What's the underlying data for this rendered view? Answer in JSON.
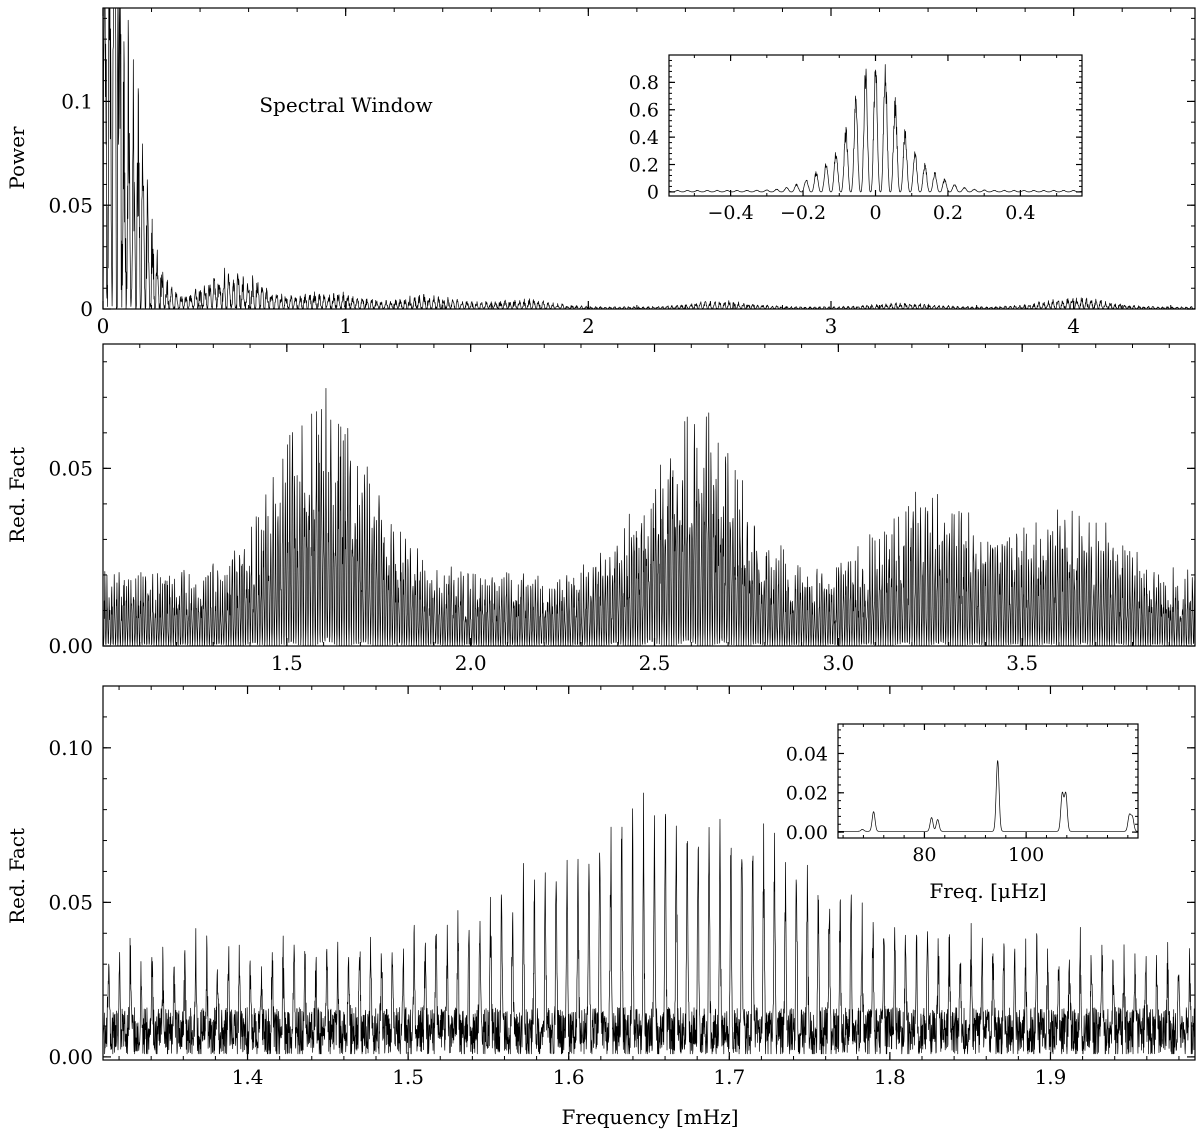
{
  "chart_data": [
    {
      "id": "window",
      "type": "line",
      "annotation": "Spectral Window",
      "xlabel": "",
      "ylabel": "Power",
      "xlim": [
        0,
        4.5
      ],
      "ylim": [
        0,
        0.145
      ],
      "xticks": [
        0,
        1,
        2,
        3,
        4
      ],
      "xtick_labels": [
        "0",
        "1",
        "2",
        "3",
        "4"
      ],
      "yticks": [
        0,
        0.05,
        0.1
      ],
      "ytick_labels": [
        "0",
        "0.05",
        "0.1"
      ],
      "envelope_peaks": [
        {
          "x": 0.08,
          "y": 0.145
        },
        {
          "x": 0.53,
          "y": 0.02
        },
        {
          "x": 0.93,
          "y": 0.008
        },
        {
          "x": 1.33,
          "y": 0.006
        },
        {
          "x": 1.72,
          "y": 0.004
        },
        {
          "x": 2.55,
          "y": 0.003
        },
        {
          "x": 3.3,
          "y": 0.002
        },
        {
          "x": 4.0,
          "y": 0.005
        }
      ],
      "grid": false
    },
    {
      "id": "window_inset",
      "type": "line",
      "xlabel": "",
      "ylabel": "",
      "xlim": [
        -0.57,
        0.57
      ],
      "ylim": [
        -0.03,
        1.0
      ],
      "xticks": [
        -0.4,
        -0.2,
        0,
        0.2,
        0.4
      ],
      "xtick_labels": [
        "−0.4",
        "−0.2",
        "0",
        "0.2",
        "0.4"
      ],
      "yticks": [
        0,
        0.2,
        0.4,
        0.6,
        0.8
      ],
      "ytick_labels": [
        "0",
        "0.2",
        "0.4",
        "0.6",
        "0.8"
      ],
      "peak": {
        "x": 0,
        "y": 0.92
      },
      "side_lobes": [
        {
          "x": -0.1,
          "y": 0.22
        },
        {
          "x": 0.1,
          "y": 0.2
        }
      ],
      "grid": false
    },
    {
      "id": "wide",
      "type": "line",
      "xlabel": "",
      "ylabel": "Red. Fact",
      "xlim": [
        1.0,
        3.97
      ],
      "ylim": [
        0,
        0.085
      ],
      "xticks": [
        1.5,
        2.0,
        2.5,
        3.0,
        3.5
      ],
      "xtick_labels": [
        "1.5",
        "2.0",
        "2.5",
        "3.0",
        "3.5"
      ],
      "yticks": [
        0,
        0.05
      ],
      "ytick_labels": [
        "0.00",
        "0.05"
      ],
      "envelope_peaks": [
        {
          "x": 1.6,
          "y": 0.074
        },
        {
          "x": 2.6,
          "y": 0.069
        },
        {
          "x": 3.24,
          "y": 0.044
        },
        {
          "x": 3.63,
          "y": 0.038
        }
      ],
      "grid": false
    },
    {
      "id": "zoom",
      "type": "line",
      "xlabel": "Frequency [mHz]",
      "ylabel": "Red. Fact",
      "xlim": [
        1.31,
        1.99
      ],
      "ylim": [
        -0.001,
        0.12
      ],
      "xticks": [
        1.4,
        1.5,
        1.6,
        1.7,
        1.8,
        1.9
      ],
      "xtick_labels": [
        "1.4",
        "1.5",
        "1.6",
        "1.7",
        "1.8",
        "1.9"
      ],
      "yticks": [
        0,
        0.05,
        0.1
      ],
      "ytick_labels": [
        "0.00",
        "0.05",
        "0.10"
      ],
      "comb_spacing": 0.0068,
      "envelope_peak": {
        "x": 1.67,
        "y": 0.074
      },
      "grid": false
    },
    {
      "id": "zoom_inset",
      "type": "line",
      "xlabel": "Freq. [μHz]",
      "ylabel": "",
      "xlim": [
        63,
        122
      ],
      "ylim": [
        -0.003,
        0.055
      ],
      "xticks": [
        80,
        100
      ],
      "xtick_labels": [
        "80",
        "100"
      ],
      "yticks": [
        0,
        0.02,
        0.04
      ],
      "ytick_labels": [
        "0.00",
        "0.02",
        "0.04"
      ],
      "peaks": [
        {
          "x": 67.8,
          "y": 0.001
        },
        {
          "x": 70.0,
          "y": 0.01
        },
        {
          "x": 81.4,
          "y": 0.007
        },
        {
          "x": 82.6,
          "y": 0.006
        },
        {
          "x": 94.4,
          "y": 0.036
        },
        {
          "x": 107.1,
          "y": 0.019
        },
        {
          "x": 107.8,
          "y": 0.019
        },
        {
          "x": 120.3,
          "y": 0.008
        },
        {
          "x": 120.9,
          "y": 0.007
        }
      ],
      "grid": false
    }
  ]
}
